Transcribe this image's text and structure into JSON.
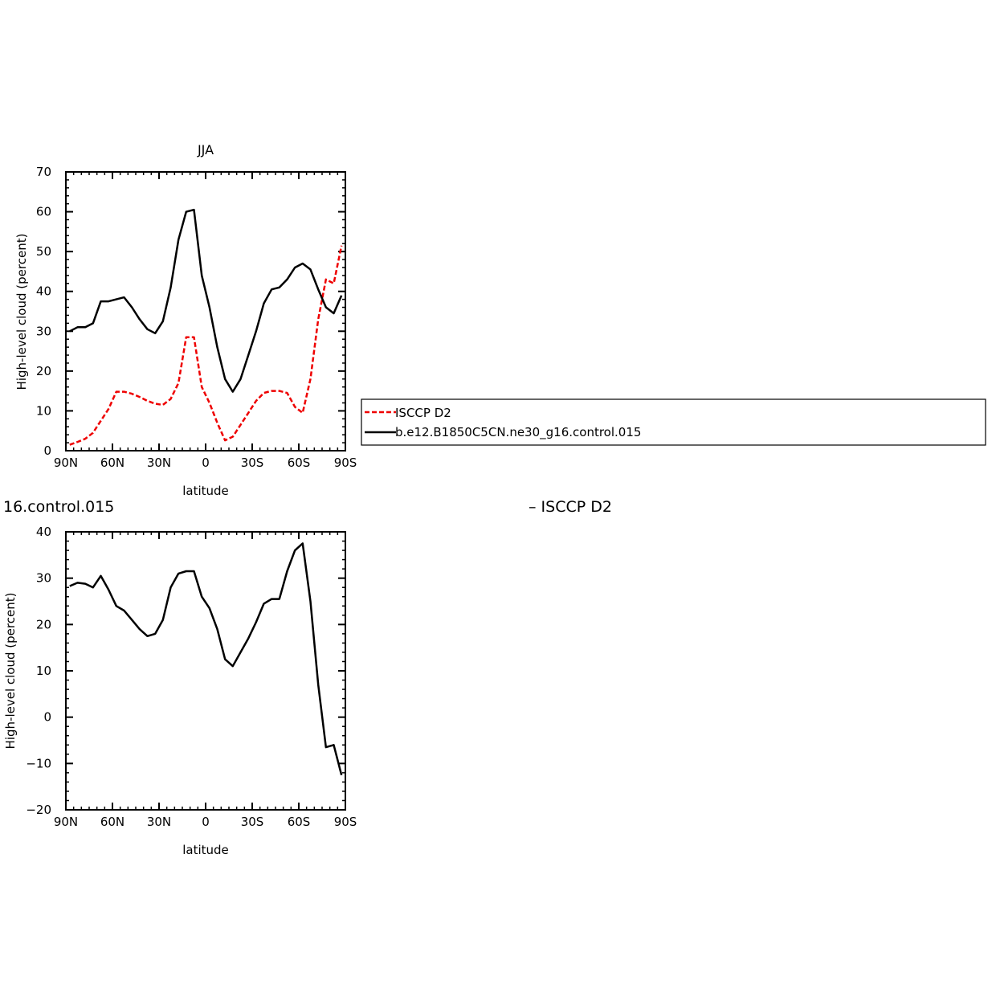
{
  "top_fragment_left": "16.control.015",
  "top_fragment_right": "– ISCCP D2",
  "legend": {
    "entries": [
      {
        "label": "ISCCP D2",
        "color": "#ee0000",
        "dash": true
      },
      {
        "label": "b.e12.B1850C5CN.ne30_g16.control.015",
        "color": "#000000",
        "dash": false
      }
    ]
  },
  "chart_data": [
    {
      "type": "line",
      "title": "JJA",
      "xlabel": "latitude",
      "ylabel": "High-level cloud (percent)",
      "xlim": [
        -90,
        90
      ],
      "ylim": [
        0,
        70
      ],
      "xticks": [
        {
          "value": -90,
          "label": "90N"
        },
        {
          "value": -60,
          "label": "60N"
        },
        {
          "value": -30,
          "label": "30N"
        },
        {
          "value": 0,
          "label": "0"
        },
        {
          "value": 30,
          "label": "30S"
        },
        {
          "value": 60,
          "label": "60S"
        },
        {
          "value": 90,
          "label": "90S"
        }
      ],
      "yticks": [
        0,
        10,
        20,
        30,
        40,
        50,
        60,
        70
      ],
      "series": [
        {
          "name": "ISCCP D2",
          "color": "#ee0000",
          "dash": true,
          "x": [
            -87.5,
            -82.5,
            -77.5,
            -72.5,
            -67.5,
            -62.5,
            -57.5,
            -52.5,
            -47.5,
            -42.5,
            -37.5,
            -32.5,
            -27.5,
            -22.5,
            -17.5,
            -12.5,
            -7.5,
            -2.5,
            2.5,
            7.5,
            12.5,
            17.5,
            22.5,
            27.5,
            32.5,
            37.5,
            42.5,
            47.5,
            52.5,
            57.5,
            62.5,
            67.5,
            72.5,
            77.5,
            82.5,
            87.5
          ],
          "y": [
            1.5,
            2.2,
            3.0,
            4.5,
            7.5,
            10.5,
            14.8,
            14.8,
            14.3,
            13.5,
            12.5,
            11.8,
            11.5,
            13.0,
            17.0,
            28.5,
            28.5,
            16.0,
            12.0,
            7.0,
            2.6,
            3.5,
            6.5,
            9.5,
            12.5,
            14.5,
            15.0,
            15.0,
            14.5,
            11.0,
            9.5,
            18.0,
            33.0,
            43.0,
            42.0,
            51.5
          ]
        },
        {
          "name": "b.e12.B1850C5CN.ne30_g16.control.015",
          "color": "#000000",
          "dash": false,
          "x": [
            -87.5,
            -82.5,
            -77.5,
            -72.5,
            -67.5,
            -62.5,
            -57.5,
            -52.5,
            -47.5,
            -42.5,
            -37.5,
            -32.5,
            -27.5,
            -22.5,
            -17.5,
            -12.5,
            -7.5,
            -2.5,
            2.5,
            7.5,
            12.5,
            17.5,
            22.5,
            27.5,
            32.5,
            37.5,
            42.5,
            47.5,
            52.5,
            57.5,
            62.5,
            67.5,
            72.5,
            77.5,
            82.5,
            87.5
          ],
          "y": [
            30.0,
            31.0,
            31.0,
            32.0,
            37.5,
            37.5,
            38.0,
            38.5,
            36.0,
            33.0,
            30.5,
            29.5,
            32.5,
            41.0,
            53.0,
            60.0,
            60.5,
            44.0,
            36.0,
            26.0,
            18.0,
            14.8,
            18.0,
            24.0,
            30.0,
            37.0,
            40.5,
            41.0,
            43.0,
            46.0,
            47.0,
            45.5,
            40.5,
            36.0,
            34.5,
            39.0
          ]
        }
      ]
    },
    {
      "type": "line",
      "xlabel": "latitude",
      "ylabel": "High-level cloud (percent)",
      "xlim": [
        -90,
        90
      ],
      "ylim": [
        -20,
        40
      ],
      "xticks": [
        {
          "value": -90,
          "label": "90N"
        },
        {
          "value": -60,
          "label": "60N"
        },
        {
          "value": -30,
          "label": "30N"
        },
        {
          "value": 0,
          "label": "0"
        },
        {
          "value": 30,
          "label": "30S"
        },
        {
          "value": 60,
          "label": "60S"
        },
        {
          "value": 90,
          "label": "90S"
        }
      ],
      "yticks": [
        -20,
        -10,
        0,
        10,
        20,
        30,
        40
      ],
      "series": [
        {
          "color": "#000000",
          "dash": false,
          "x": [
            -87.5,
            -82.5,
            -77.5,
            -72.5,
            -67.5,
            -62.5,
            -57.5,
            -52.5,
            -47.5,
            -42.5,
            -37.5,
            -32.5,
            -27.5,
            -22.5,
            -17.5,
            -12.5,
            -7.5,
            -2.5,
            2.5,
            7.5,
            12.5,
            17.5,
            22.5,
            27.5,
            32.5,
            37.5,
            42.5,
            47.5,
            52.5,
            57.5,
            62.5,
            67.5,
            72.5,
            77.5,
            82.5,
            87.5
          ],
          "y": [
            28.3,
            29.0,
            28.8,
            28.0,
            30.5,
            27.5,
            24.0,
            23.0,
            21.0,
            19.0,
            17.5,
            18.0,
            21.0,
            28.0,
            31.0,
            31.5,
            31.5,
            26.0,
            23.5,
            19.0,
            12.5,
            11.0,
            14.0,
            17.0,
            20.5,
            24.5,
            25.5,
            25.5,
            31.5,
            36.0,
            37.5,
            25.0,
            7.0,
            -6.5,
            -6.0,
            -12.5
          ]
        }
      ]
    }
  ]
}
